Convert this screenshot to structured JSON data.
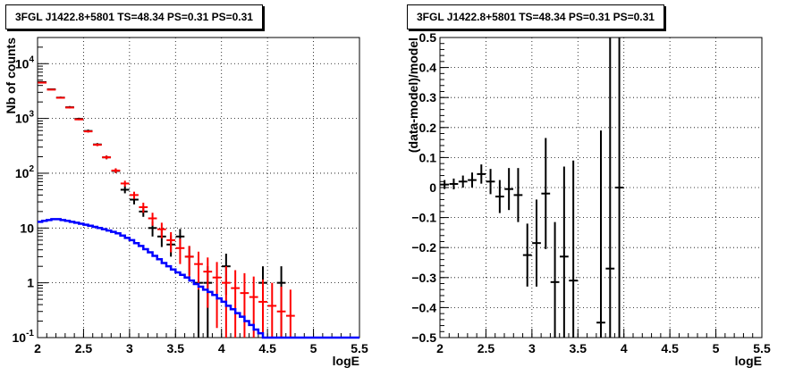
{
  "chart_data": [
    {
      "type": "line",
      "title": "3FGL J1422.8+5801 TS=48.34 PS=0.31 PS=0.31",
      "xlabel": "logE",
      "ylabel": "Nb of counts",
      "xlim": [
        2,
        5.5
      ],
      "ylim": [
        0.1,
        30000
      ],
      "yscale": "log",
      "grid": true,
      "x_ticks": [
        "2",
        "2.5",
        "3",
        "3.5",
        "4",
        "4.5",
        "5",
        "5.5"
      ],
      "y_ticks": [
        {
          "value": 0.1,
          "label": "10",
          "exp": "-1"
        },
        {
          "value": 1,
          "label": "1",
          "exp": ""
        },
        {
          "value": 10,
          "label": "10",
          "exp": ""
        },
        {
          "value": 100,
          "label": "10",
          "exp": "2"
        },
        {
          "value": 1000,
          "label": "10",
          "exp": "3"
        },
        {
          "value": 10000,
          "label": "10",
          "exp": "4"
        }
      ],
      "series": [
        {
          "type": "errorbar",
          "color": "#000000",
          "points": [
            {
              "x": 2.05,
              "y": 4600,
              "lo": 4460,
              "hi": 4740
            },
            {
              "x": 2.15,
              "y": 3400,
              "lo": 3290,
              "hi": 3520
            },
            {
              "x": 2.25,
              "y": 2400,
              "lo": 2300,
              "hi": 2500
            },
            {
              "x": 2.35,
              "y": 1600,
              "lo": 1530,
              "hi": 1680
            },
            {
              "x": 2.45,
              "y": 980,
              "lo": 930,
              "hi": 1030
            },
            {
              "x": 2.55,
              "y": 590,
              "lo": 555,
              "hi": 625
            },
            {
              "x": 2.65,
              "y": 335,
              "lo": 315,
              "hi": 355
            },
            {
              "x": 2.75,
              "y": 195,
              "lo": 180,
              "hi": 210
            },
            {
              "x": 2.85,
              "y": 110,
              "lo": 100,
              "hi": 121
            },
            {
              "x": 2.95,
              "y": 50,
              "lo": 43,
              "hi": 58
            },
            {
              "x": 3.05,
              "y": 33,
              "lo": 27,
              "hi": 39
            },
            {
              "x": 3.15,
              "y": 20,
              "lo": 16,
              "hi": 25
            },
            {
              "x": 3.25,
              "y": 10,
              "lo": 7,
              "hi": 13
            },
            {
              "x": 3.35,
              "y": 7,
              "lo": 4.5,
              "hi": 9.6
            },
            {
              "x": 3.45,
              "y": 5,
              "lo": 3,
              "hi": 7.3
            },
            {
              "x": 3.55,
              "y": 7,
              "lo": 4.5,
              "hi": 9.6
            },
            {
              "x": 3.65,
              "y": 3,
              "lo": 1.4,
              "hi": 4.7
            },
            {
              "x": 3.75,
              "y": 1,
              "lo": 0.1,
              "hi": 2
            },
            {
              "x": 3.85,
              "y": 1,
              "lo": 0.1,
              "hi": 2
            },
            {
              "x": 4.05,
              "y": 2,
              "lo": 0.6,
              "hi": 3.4
            },
            {
              "x": 4.45,
              "y": 1,
              "lo": 0.1,
              "hi": 2
            },
            {
              "x": 4.65,
              "y": 1,
              "lo": 0.1,
              "hi": 2
            }
          ]
        },
        {
          "type": "errorbar",
          "color": "#ff0000",
          "points": [
            {
              "x": 2.05,
              "y": 4500,
              "lo": 4430,
              "hi": 4570
            },
            {
              "x": 2.15,
              "y": 3350,
              "lo": 3290,
              "hi": 3410
            },
            {
              "x": 2.25,
              "y": 2380,
              "lo": 2330,
              "hi": 2430
            },
            {
              "x": 2.35,
              "y": 1580,
              "lo": 1540,
              "hi": 1620
            },
            {
              "x": 2.45,
              "y": 960,
              "lo": 930,
              "hi": 990
            },
            {
              "x": 2.55,
              "y": 580,
              "lo": 555,
              "hi": 605
            },
            {
              "x": 2.65,
              "y": 330,
              "lo": 312,
              "hi": 348
            },
            {
              "x": 2.75,
              "y": 195,
              "lo": 181,
              "hi": 209
            },
            {
              "x": 2.85,
              "y": 112,
              "lo": 101,
              "hi": 123
            },
            {
              "x": 2.95,
              "y": 65,
              "lo": 57,
              "hi": 73
            },
            {
              "x": 3.05,
              "y": 40,
              "lo": 34,
              "hi": 46
            },
            {
              "x": 3.15,
              "y": 24,
              "lo": 19,
              "hi": 29
            },
            {
              "x": 3.25,
              "y": 15,
              "lo": 11,
              "hi": 19
            },
            {
              "x": 3.35,
              "y": 9.5,
              "lo": 6.5,
              "hi": 12.5
            },
            {
              "x": 3.45,
              "y": 6,
              "lo": 3.6,
              "hi": 8.4
            },
            {
              "x": 3.55,
              "y": 4.3,
              "lo": 2.2,
              "hi": 6.4
            },
            {
              "x": 3.65,
              "y": 3,
              "lo": 1.3,
              "hi": 4.7
            },
            {
              "x": 3.75,
              "y": 2.2,
              "lo": 0.75,
              "hi": 3.7
            },
            {
              "x": 3.85,
              "y": 1.6,
              "lo": 0.35,
              "hi": 2.9
            },
            {
              "x": 3.95,
              "y": 1.25,
              "lo": 0.15,
              "hi": 2.4
            },
            {
              "x": 4.05,
              "y": 1.0,
              "lo": 0.1,
              "hi": 2.0
            },
            {
              "x": 4.15,
              "y": 0.8,
              "lo": 0.1,
              "hi": 1.7
            },
            {
              "x": 4.25,
              "y": 0.65,
              "lo": 0.1,
              "hi": 1.5
            },
            {
              "x": 4.35,
              "y": 0.55,
              "lo": 0.1,
              "hi": 1.3
            },
            {
              "x": 4.45,
              "y": 0.45,
              "lo": 0.1,
              "hi": 1.15
            },
            {
              "x": 4.55,
              "y": 0.38,
              "lo": 0.1,
              "hi": 1.0
            },
            {
              "x": 4.65,
              "y": 0.3,
              "lo": 0.1,
              "hi": 0.85
            },
            {
              "x": 4.75,
              "y": 0.25,
              "lo": 0.1,
              "hi": 0.75
            }
          ]
        },
        {
          "type": "step",
          "color": "#0000ff",
          "x_edges": [
            2.0,
            2.05,
            2.1,
            2.15,
            2.2,
            2.25,
            2.3,
            2.35,
            2.4,
            2.45,
            2.5,
            2.55,
            2.6,
            2.65,
            2.7,
            2.75,
            2.8,
            2.85,
            2.9,
            2.95,
            3.0,
            3.05,
            3.1,
            3.15,
            3.2,
            3.25,
            3.3,
            3.35,
            3.4,
            3.45,
            3.5,
            3.55,
            3.6,
            3.65,
            3.7,
            3.75,
            3.8,
            3.85,
            3.9,
            3.95,
            4.0,
            4.05,
            4.1,
            4.15,
            4.2,
            4.25,
            4.3,
            4.35,
            4.4,
            4.45,
            4.5,
            4.55,
            4.6,
            4.65,
            4.7,
            4.75,
            4.8,
            5.5
          ],
          "values": [
            13,
            13.5,
            14,
            14.5,
            14.5,
            14,
            13.5,
            13,
            12.5,
            12,
            11.5,
            11,
            10.5,
            10,
            9.5,
            9,
            8.5,
            8,
            7.3,
            6.6,
            6.0,
            5.3,
            4.7,
            4.1,
            3.6,
            3.1,
            2.7,
            2.3,
            2.0,
            1.75,
            1.55,
            1.4,
            1.25,
            1.1,
            0.95,
            0.85,
            0.75,
            0.68,
            0.6,
            0.52,
            0.45,
            0.38,
            0.33,
            0.28,
            0.24,
            0.2,
            0.17,
            0.14,
            0.12,
            0.1,
            0.1,
            0.1,
            0.1,
            0.1,
            0.1,
            0.1,
            0.1
          ]
        }
      ]
    },
    {
      "type": "scatter",
      "title": "3FGL J1422.8+5801 TS=48.34 PS=0.31 PS=0.31",
      "xlabel": "logE",
      "ylabel": "(data-model)/model",
      "xlim": [
        2,
        5.5
      ],
      "ylim": [
        -0.5,
        0.5
      ],
      "grid": true,
      "x_ticks": [
        "2",
        "2.5",
        "3",
        "3.5",
        "4",
        "4.5",
        "5",
        "5.5"
      ],
      "y_ticks": [
        "−0.5",
        "−0.4",
        "−0.3",
        "−0.2",
        "−0.1",
        "0",
        "0.1",
        "0.2",
        "0.3",
        "0.4",
        "0.5"
      ],
      "series": [
        {
          "type": "errorbar",
          "color": "#000000",
          "points": [
            {
              "x": 2.05,
              "y": 0.01,
              "err": 0.015
            },
            {
              "x": 2.15,
              "y": 0.012,
              "err": 0.018
            },
            {
              "x": 2.25,
              "y": 0.02,
              "err": 0.02
            },
            {
              "x": 2.35,
              "y": 0.025,
              "err": 0.025
            },
            {
              "x": 2.45,
              "y": 0.045,
              "err": 0.032
            },
            {
              "x": 2.55,
              "y": 0.02,
              "err": 0.042
            },
            {
              "x": 2.65,
              "y": -0.03,
              "err": 0.055
            },
            {
              "x": 2.75,
              "y": -0.005,
              "err": 0.07
            },
            {
              "x": 2.85,
              "y": -0.025,
              "err": 0.09
            },
            {
              "x": 2.95,
              "y": -0.225,
              "err": 0.105
            },
            {
              "x": 3.05,
              "y": -0.185,
              "err": 0.145
            },
            {
              "x": 3.15,
              "y": -0.02,
              "err": 0.185
            },
            {
              "x": 3.25,
              "y": -0.315,
              "err": 0.2
            },
            {
              "x": 3.35,
              "y": -0.23,
              "err": 0.3
            },
            {
              "x": 3.45,
              "y": -0.31,
              "err": 0.4
            },
            {
              "x": 3.75,
              "y": -0.45,
              "err": 0.64
            },
            {
              "x": 3.85,
              "y": -0.27,
              "err": 0.8
            },
            {
              "x": 3.95,
              "y": 0.0,
              "err": 1.0
            }
          ]
        }
      ]
    }
  ]
}
